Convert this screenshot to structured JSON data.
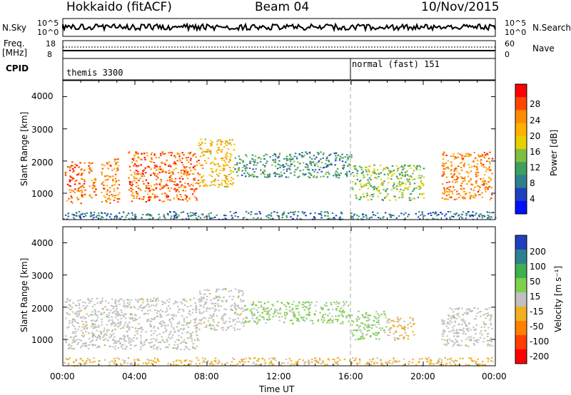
{
  "header": {
    "station": "Hokkaido (fitACF)",
    "beam": "Beam 04",
    "date": "10/Nov/2015"
  },
  "top_panels": {
    "nsky_label": "N.Sky",
    "nsky_ticks": [
      "10^5",
      "10^0"
    ],
    "nsearch_label": "N.Search",
    "nsearch_ticks": [
      "10^5",
      "10^0"
    ],
    "freq_label_1": "Freq.",
    "freq_label_2": "[MHz]",
    "freq_ticks": [
      "18",
      "8"
    ],
    "nave_label": "Nave",
    "nave_ticks": [
      "60",
      "0"
    ],
    "cpid_label": "CPID",
    "cpid_segments": [
      {
        "start_ut": 0,
        "end_ut": 16,
        "label": "themis 3300"
      },
      {
        "start_ut": 16,
        "end_ut": 24,
        "label": "normal (fast) 151"
      }
    ]
  },
  "power_colorbar": {
    "label": "Power [dB]",
    "ticks": [
      "28",
      "24",
      "20",
      "16",
      "12",
      "8",
      "4"
    ],
    "colors": [
      "#ff0000",
      "#ff4500",
      "#ff8c00",
      "#ffb000",
      "#e8d000",
      "#7fbf3f",
      "#3f9f5f",
      "#2f7f8f",
      "#2040c0",
      "#0010ff"
    ]
  },
  "velocity_colorbar": {
    "label": "Velocity [m s⁻¹]",
    "ticks": [
      "200",
      "100",
      "50",
      "15",
      "-15",
      "-50",
      "-100",
      "-200"
    ],
    "colors": [
      "#2040c0",
      "#2f7f8f",
      "#3faf4f",
      "#7fd04f",
      "#c0c0c0",
      "#f0b020",
      "#ff8000",
      "#ff4000",
      "#ff0000"
    ]
  },
  "chart_data": [
    {
      "type": "heatmap",
      "title": "Power",
      "ylabel": "Slant Range [km]",
      "xlabel": "",
      "x_range_ut_hours": [
        0,
        24
      ],
      "ylim": [
        180,
        4500
      ],
      "yticks": [
        "4000",
        "3000",
        "2000",
        "1000"
      ],
      "zlim_db": [
        0,
        32
      ],
      "regions": [
        {
          "ut_start": 0.1,
          "ut_end": 1.2,
          "range_low_km": 700,
          "range_high_km": 2000,
          "value_db": 26
        },
        {
          "ut_start": 1.4,
          "ut_end": 1.8,
          "range_low_km": 700,
          "range_high_km": 2000,
          "value_db": 24
        },
        {
          "ut_start": 2.1,
          "ut_end": 3.1,
          "range_low_km": 700,
          "range_high_km": 2100,
          "value_db": 24
        },
        {
          "ut_start": 3.6,
          "ut_end": 7.5,
          "range_low_km": 750,
          "range_high_km": 2300,
          "value_db": 26
        },
        {
          "ut_start": 7.5,
          "ut_end": 9.5,
          "range_low_km": 1200,
          "range_high_km": 2700,
          "value_db": 20
        },
        {
          "ut_start": 9.5,
          "ut_end": 16.0,
          "range_low_km": 1500,
          "range_high_km": 2300,
          "value_db": 10
        },
        {
          "ut_start": 16.0,
          "ut_end": 20.0,
          "range_low_km": 800,
          "range_high_km": 1900,
          "value_db": 14
        },
        {
          "ut_start": 21.0,
          "ut_end": 23.8,
          "range_low_km": 800,
          "range_high_km": 2300,
          "value_db": 24
        },
        {
          "ut_start": 0.0,
          "ut_end": 24.0,
          "range_low_km": 200,
          "range_high_km": 450,
          "value_db": 8
        }
      ]
    },
    {
      "type": "heatmap",
      "title": "Velocity",
      "ylabel": "Slant Range [km]",
      "xlabel": "Time UT",
      "x_range_ut_hours": [
        0,
        24
      ],
      "xticks": [
        "00:00",
        "04:00",
        "08:00",
        "12:00",
        "16:00",
        "20:00",
        "00:00"
      ],
      "ylim": [
        180,
        4500
      ],
      "yticks": [
        "4000",
        "3000",
        "2000",
        "1000"
      ],
      "zlim_ms": [
        -250,
        250
      ],
      "regions": [
        {
          "ut_start": 0.1,
          "ut_end": 7.5,
          "range_low_km": 700,
          "range_high_km": 2300,
          "value_ms": 0
        },
        {
          "ut_start": 7.5,
          "ut_end": 10.0,
          "range_low_km": 1300,
          "range_high_km": 2600,
          "value_ms": 0
        },
        {
          "ut_start": 10.0,
          "ut_end": 16.0,
          "range_low_km": 1500,
          "range_high_km": 2200,
          "value_ms": 40
        },
        {
          "ut_start": 16.0,
          "ut_end": 18.0,
          "range_low_km": 1000,
          "range_high_km": 1900,
          "value_ms": 40
        },
        {
          "ut_start": 18.0,
          "ut_end": 19.5,
          "range_low_km": 1000,
          "range_high_km": 1700,
          "value_ms": -40
        },
        {
          "ut_start": 21.0,
          "ut_end": 23.8,
          "range_low_km": 800,
          "range_high_km": 2000,
          "value_ms": 0
        },
        {
          "ut_start": 0.0,
          "ut_end": 24.0,
          "range_low_km": 200,
          "range_high_km": 450,
          "value_ms": -40
        }
      ]
    }
  ]
}
